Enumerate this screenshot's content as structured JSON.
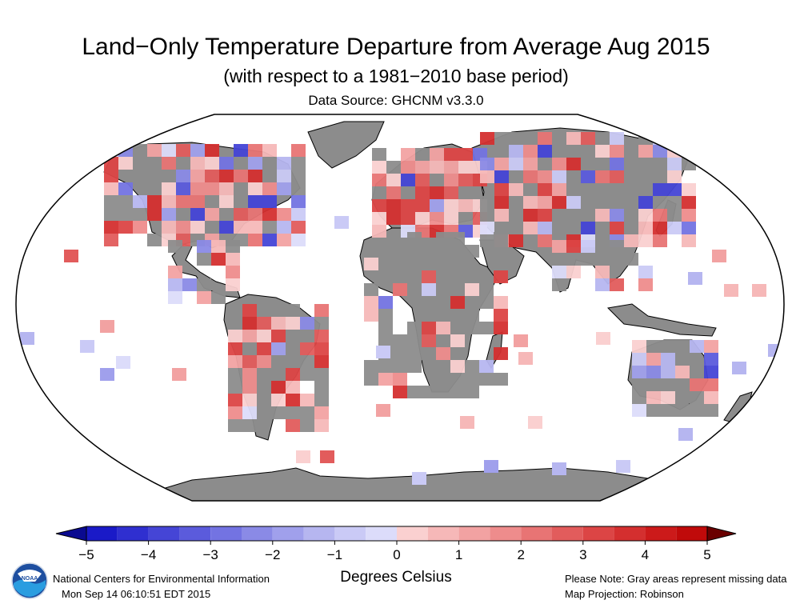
{
  "header": {
    "title": "Land−Only Temperature Departure from Average Aug 2015",
    "subtitle": "(with respect to a 1981−2010 base period)",
    "source": "Data Source: GHCNM v3.3.0"
  },
  "colorbar": {
    "tick_labels": [
      "−5",
      "−4",
      "−3",
      "−2",
      "−1",
      "0",
      "1",
      "2",
      "3",
      "4",
      "5"
    ],
    "units_label": "Degrees Celsius",
    "colors": [
      "#1a1ac8",
      "#2f2fd0",
      "#4545d6",
      "#5b5bdc",
      "#7373e2",
      "#8a8ae6",
      "#a0a0ec",
      "#b6b6f0",
      "#cacaf6",
      "#dcdcfa",
      "#fad0d0",
      "#f6b8b8",
      "#f2a2a2",
      "#ee8c8c",
      "#e87474",
      "#e25c5c",
      "#dc4545",
      "#d42f2f",
      "#cc1a1a",
      "#c00a0a"
    ],
    "end_low": "#0a0a90",
    "end_high": "#6a0000"
  },
  "map": {
    "missing_color": "#8c8c8c",
    "ocean_color": "#ffffff",
    "projection_label": "Map Projection: Robinson"
  },
  "footer": {
    "org": "National Centers for Environmental Information",
    "timestamp": "Mon Sep 14 06:10:51 EDT 2015",
    "note": "Please Note: Gray areas represent missing data",
    "projection": "Map Projection: Robinson"
  },
  "logo": {
    "icon": "noaa-logo-icon",
    "text": "NOAA"
  }
}
